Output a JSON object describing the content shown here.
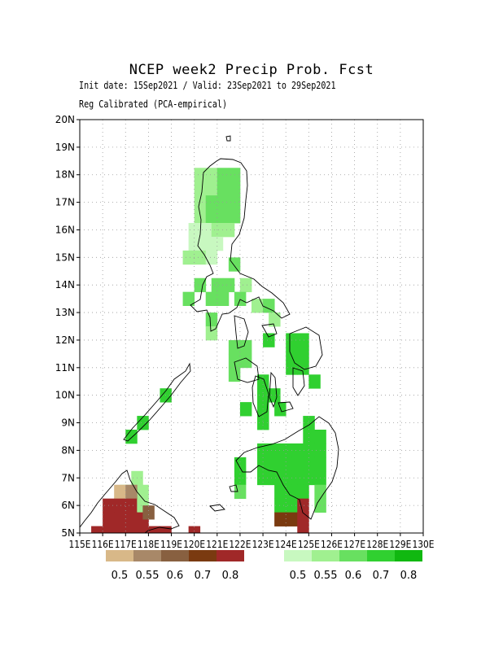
{
  "title": "NCEP week2 Precip Prob. Fcst",
  "subtitle_1": "Init date: 15Sep2021 / Valid: 23Sep2021 to 29Sep2021",
  "subtitle_2": "Reg Calibrated (PCA-empirical)",
  "axes": {
    "lon_range": [
      115,
      130
    ],
    "lat_range": [
      5,
      20
    ],
    "lon_ticks": [
      "115E",
      "116E",
      "117E",
      "118E",
      "119E",
      "120E",
      "121E",
      "122E",
      "123E",
      "124E",
      "125E",
      "126E",
      "127E",
      "128E",
      "129E",
      "130E"
    ],
    "lat_ticks": [
      "5N",
      "6N",
      "7N",
      "8N",
      "9N",
      "10N",
      "11N",
      "12N",
      "13N",
      "14N",
      "15N",
      "16N",
      "17N",
      "18N",
      "19N",
      "20N"
    ],
    "grid": "dotted"
  },
  "legend_dry": {
    "labels": [
      "0.5",
      "0.55",
      "0.6",
      "0.7",
      "0.8"
    ],
    "colors": [
      "#d8b888",
      "#a88868",
      "#886040",
      "#7a3a10",
      "#a02828"
    ]
  },
  "legend_wet": {
    "labels": [
      "0.5",
      "0.55",
      "0.6",
      "0.7",
      "0.8"
    ],
    "colors": [
      "#c8f8c0",
      "#a0f090",
      "#68e060",
      "#30d030",
      "#10b810"
    ]
  },
  "chart_data": {
    "type": "heatmap",
    "cell_size_deg": 0.5,
    "colors": {
      "w1": "#c8f8c0",
      "w2": "#a0f090",
      "w3": "#68e060",
      "w4": "#30d030",
      "w5": "#10b810",
      "d1": "#d8b888",
      "d2": "#a88868",
      "d3": "#886040",
      "d4": "#7a3a10",
      "d5": "#a02828"
    },
    "cells": [
      [
        120.25,
        18.0,
        "w2"
      ],
      [
        120.75,
        18.0,
        "w2"
      ],
      [
        121.25,
        18.0,
        "w3"
      ],
      [
        121.75,
        18.0,
        "w3"
      ],
      [
        120.25,
        17.5,
        "w2"
      ],
      [
        120.75,
        17.5,
        "w2"
      ],
      [
        121.25,
        17.5,
        "w3"
      ],
      [
        121.75,
        17.5,
        "w3"
      ],
      [
        120.25,
        17.0,
        "w2"
      ],
      [
        120.75,
        17.0,
        "w3"
      ],
      [
        121.25,
        17.0,
        "w3"
      ],
      [
        121.75,
        17.0,
        "w3"
      ],
      [
        120.25,
        16.5,
        "w2"
      ],
      [
        120.75,
        16.5,
        "w3"
      ],
      [
        121.25,
        16.5,
        "w3"
      ],
      [
        121.75,
        16.5,
        "w3"
      ],
      [
        120.0,
        16.0,
        "w1"
      ],
      [
        120.5,
        16.0,
        "w1"
      ],
      [
        121.0,
        16.0,
        "w2"
      ],
      [
        121.5,
        16.0,
        "w2"
      ],
      [
        120.0,
        15.5,
        "w1"
      ],
      [
        120.5,
        15.5,
        "w1"
      ],
      [
        121.0,
        15.5,
        "w1"
      ],
      [
        119.75,
        15.0,
        "w2"
      ],
      [
        120.25,
        15.0,
        "w2"
      ],
      [
        120.75,
        15.0,
        "w1"
      ],
      [
        121.75,
        14.75,
        "w3"
      ],
      [
        120.25,
        14.0,
        "w3"
      ],
      [
        121.0,
        14.0,
        "w3"
      ],
      [
        121.5,
        14.0,
        "w3"
      ],
      [
        122.25,
        14.0,
        "w2"
      ],
      [
        119.75,
        13.5,
        "w3"
      ],
      [
        120.75,
        13.5,
        "w3"
      ],
      [
        121.25,
        13.5,
        "w3"
      ],
      [
        122.0,
        13.5,
        "w3"
      ],
      [
        122.75,
        13.25,
        "w2"
      ],
      [
        123.25,
        13.25,
        "w3"
      ],
      [
        120.75,
        12.75,
        "w3"
      ],
      [
        123.5,
        12.75,
        "w2"
      ],
      [
        120.75,
        12.25,
        "w2"
      ],
      [
        123.25,
        12.0,
        "w4"
      ],
      [
        124.25,
        12.0,
        "w4"
      ],
      [
        124.75,
        12.0,
        "w4"
      ],
      [
        121.75,
        11.75,
        "w3"
      ],
      [
        122.25,
        11.75,
        "w3"
      ],
      [
        121.75,
        11.25,
        "w3"
      ],
      [
        122.25,
        11.25,
        "w3"
      ],
      [
        124.25,
        11.5,
        "w4"
      ],
      [
        124.75,
        11.5,
        "w4"
      ],
      [
        124.25,
        11.0,
        "w4"
      ],
      [
        124.75,
        11.0,
        "w4"
      ],
      [
        121.75,
        10.75,
        "w3"
      ],
      [
        123.0,
        10.5,
        "w4"
      ],
      [
        125.25,
        10.5,
        "w4"
      ],
      [
        118.75,
        10.0,
        "w4"
      ],
      [
        123.0,
        10.0,
        "w4"
      ],
      [
        123.5,
        10.0,
        "w4"
      ],
      [
        122.25,
        9.5,
        "w4"
      ],
      [
        123.0,
        9.5,
        "w4"
      ],
      [
        123.75,
        9.5,
        "w4"
      ],
      [
        117.75,
        9.0,
        "w4"
      ],
      [
        123.0,
        9.0,
        "w4"
      ],
      [
        125.0,
        9.0,
        "w4"
      ],
      [
        117.25,
        8.5,
        "w4"
      ],
      [
        125.0,
        8.5,
        "w4"
      ],
      [
        125.5,
        8.5,
        "w4"
      ],
      [
        123.0,
        8.0,
        "w4"
      ],
      [
        123.5,
        8.0,
        "w4"
      ],
      [
        124.0,
        8.0,
        "w4"
      ],
      [
        124.5,
        8.0,
        "w4"
      ],
      [
        125.0,
        8.0,
        "w4"
      ],
      [
        125.5,
        8.0,
        "w4"
      ],
      [
        122.0,
        7.5,
        "w4"
      ],
      [
        123.0,
        7.5,
        "w4"
      ],
      [
        123.5,
        7.5,
        "w4"
      ],
      [
        124.0,
        7.5,
        "w4"
      ],
      [
        124.5,
        7.5,
        "w4"
      ],
      [
        125.0,
        7.5,
        "w4"
      ],
      [
        125.5,
        7.5,
        "w4"
      ],
      [
        122.0,
        7.0,
        "w4"
      ],
      [
        123.0,
        7.0,
        "w4"
      ],
      [
        123.5,
        7.0,
        "w4"
      ],
      [
        124.0,
        7.0,
        "w4"
      ],
      [
        124.5,
        7.0,
        "w4"
      ],
      [
        125.0,
        7.0,
        "w4"
      ],
      [
        125.5,
        7.0,
        "w4"
      ],
      [
        122.0,
        6.5,
        "w3"
      ],
      [
        123.75,
        6.5,
        "w4"
      ],
      [
        124.25,
        6.5,
        "w4"
      ],
      [
        124.75,
        6.5,
        "w4"
      ],
      [
        125.5,
        6.5,
        "w3"
      ],
      [
        123.75,
        6.0,
        "w4"
      ],
      [
        124.25,
        6.0,
        "w4"
      ],
      [
        125.5,
        6.0,
        "w3"
      ],
      [
        117.0,
        6.5,
        "w2"
      ],
      [
        117.75,
        6.5,
        "w2"
      ],
      [
        117.5,
        7.0,
        "w2"
      ],
      [
        116.75,
        6.5,
        "d1"
      ],
      [
        117.25,
        6.5,
        "d2"
      ],
      [
        116.25,
        6.0,
        "d5"
      ],
      [
        116.75,
        6.0,
        "d5"
      ],
      [
        117.25,
        6.0,
        "d5"
      ],
      [
        117.75,
        6.0,
        "w2"
      ],
      [
        116.25,
        5.5,
        "d5"
      ],
      [
        116.75,
        5.5,
        "d5"
      ],
      [
        117.25,
        5.5,
        "d5"
      ],
      [
        117.75,
        5.5,
        "d5"
      ],
      [
        118.0,
        5.75,
        "d3"
      ],
      [
        115.75,
        5.0,
        "d5"
      ],
      [
        116.25,
        5.0,
        "d5"
      ],
      [
        116.75,
        5.0,
        "d5"
      ],
      [
        117.25,
        5.0,
        "d5"
      ],
      [
        117.75,
        5.0,
        "d5"
      ],
      [
        118.25,
        5.0,
        "d5"
      ],
      [
        118.75,
        5.0,
        "d5"
      ],
      [
        120.0,
        5.0,
        "d5"
      ],
      [
        123.75,
        5.5,
        "d4"
      ],
      [
        124.25,
        5.5,
        "d4"
      ],
      [
        124.75,
        5.5,
        "d5"
      ],
      [
        124.75,
        6.0,
        "d5"
      ],
      [
        124.75,
        5.0,
        "d5"
      ]
    ]
  }
}
